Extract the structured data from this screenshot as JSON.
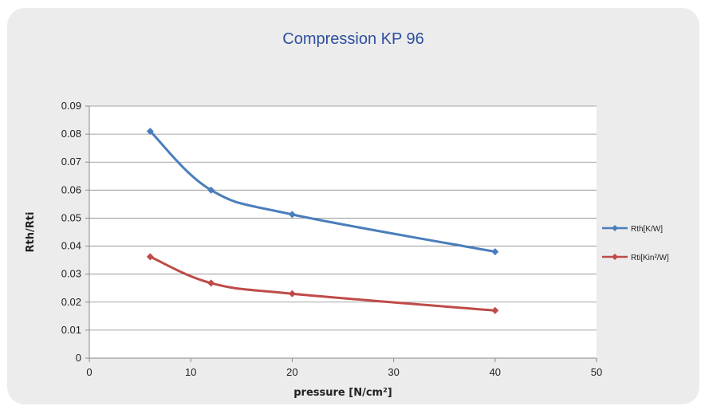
{
  "chart_data": {
    "type": "line",
    "title": "Compression KP 96",
    "xlabel": "pressure [N/cm²]",
    "ylabel": "Rth/Rti",
    "xlim": [
      0,
      50
    ],
    "ylim": [
      0,
      0.09
    ],
    "x_ticks": [
      0,
      10,
      20,
      30,
      40,
      50
    ],
    "x_tick_labels": [
      "0",
      "10",
      "20",
      "30",
      "40",
      "50"
    ],
    "y_ticks": [
      0,
      0.01,
      0.02,
      0.03,
      0.04,
      0.05,
      0.06,
      0.07,
      0.08,
      0.09
    ],
    "y_tick_labels": [
      "0",
      "0.01",
      "0.02",
      "0.03",
      "0.04",
      "0.05",
      "0.06",
      "0.07",
      "0.08",
      "0.09"
    ],
    "grid": "horizontal",
    "legend_position": "right",
    "series": [
      {
        "name": "Rth[K/W]",
        "color": "#4a7ebb",
        "x": [
          6,
          12,
          20,
          40
        ],
        "y": [
          0.081,
          0.06,
          0.0513,
          0.038
        ]
      },
      {
        "name": "Rti[Kin²/W]",
        "color": "#be4b48",
        "x": [
          6,
          12,
          20,
          40
        ],
        "y": [
          0.0362,
          0.0268,
          0.023,
          0.017
        ]
      }
    ]
  }
}
